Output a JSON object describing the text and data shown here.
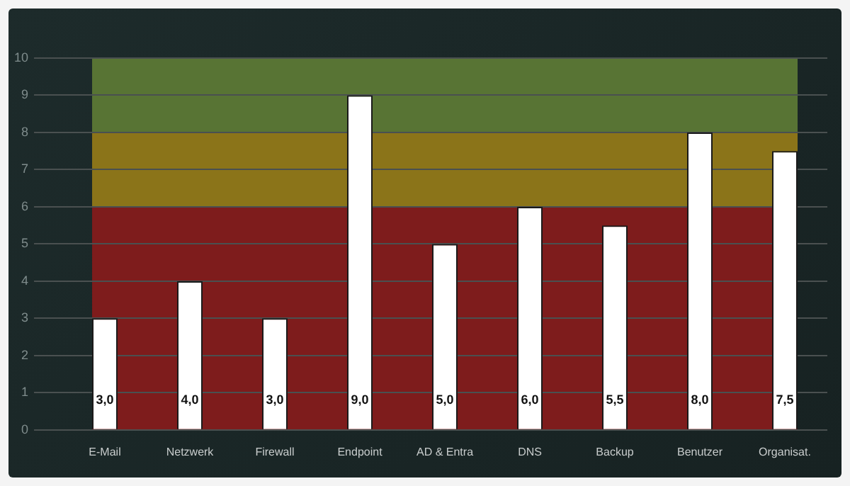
{
  "chart_data": {
    "type": "bar",
    "categories": [
      "E-Mail",
      "Netzwerk",
      "Firewall",
      "Endpoint",
      "AD & Entra",
      "DNS",
      "Backup",
      "Benutzer",
      "Organisat."
    ],
    "values": [
      3,
      4,
      3,
      9,
      5,
      6,
      5.5,
      8,
      7.5
    ],
    "value_labels": [
      "3,0",
      "4,0",
      "3,0",
      "9,0",
      "5,0",
      "6,0",
      "5,5",
      "8,0",
      "7,5"
    ],
    "color": "#ffffff",
    "ylim": [
      0,
      10
    ],
    "yticks": [
      0,
      1,
      2,
      3,
      4,
      5,
      6,
      7,
      8,
      9,
      10
    ],
    "grid": "y",
    "legend": false,
    "bands": [
      {
        "axis": "y",
        "from": 0,
        "to": 6,
        "color": "#7e1c1c"
      },
      {
        "axis": "y",
        "from": 6,
        "to": 8,
        "color": "#8b7419"
      },
      {
        "axis": "y",
        "from": 8,
        "to": 10,
        "color": "#587434"
      }
    ]
  }
}
